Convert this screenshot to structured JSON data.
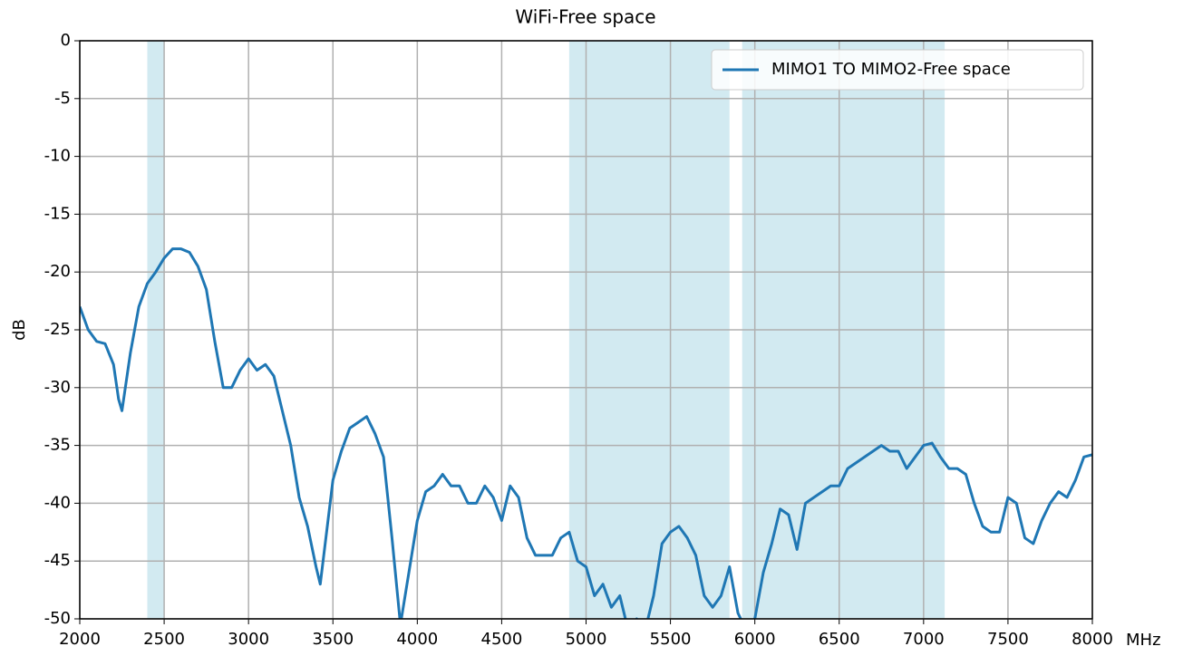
{
  "chart_data": {
    "type": "line",
    "title": "WiFi-Free space",
    "xlabel": "MHz",
    "ylabel": "dB",
    "x": [
      2000,
      2050,
      2100,
      2150,
      2200,
      2230,
      2250,
      2300,
      2350,
      2400,
      2450,
      2500,
      2550,
      2600,
      2650,
      2700,
      2750,
      2800,
      2850,
      2900,
      2950,
      3000,
      3050,
      3100,
      3150,
      3200,
      3250,
      3300,
      3350,
      3400,
      3425,
      3450,
      3500,
      3550,
      3600,
      3650,
      3700,
      3750,
      3800,
      3850,
      3900,
      3950,
      4000,
      4050,
      4100,
      4150,
      4200,
      4250,
      4300,
      4350,
      4400,
      4450,
      4500,
      4550,
      4600,
      4650,
      4700,
      4750,
      4800,
      4850,
      4900,
      4950,
      5000,
      5050,
      5100,
      5150,
      5200,
      5250,
      5300,
      5350,
      5400,
      5450,
      5500,
      5550,
      5600,
      5650,
      5700,
      5750,
      5800,
      5850,
      5900,
      5950,
      6000,
      6050,
      6100,
      6150,
      6200,
      6250,
      6300,
      6350,
      6400,
      6450,
      6500,
      6550,
      6600,
      6650,
      6700,
      6750,
      6800,
      6850,
      6900,
      6950,
      7000,
      7050,
      7100,
      7150,
      7200,
      7250,
      7300,
      7350,
      7400,
      7450,
      7500,
      7550,
      7600,
      7650,
      7700,
      7750,
      7800,
      7850,
      7900,
      7950,
      8000
    ],
    "series": [
      {
        "name": "MIMO1 TO MIMO2-Free space",
        "color": "#1f77b4",
        "values": [
          -23,
          -25,
          -26,
          -26.2,
          -28,
          -31,
          -32,
          -27,
          -23,
          -21,
          -20,
          -18.8,
          -18,
          -18,
          -18.3,
          -19.5,
          -21.5,
          -26,
          -30,
          -30,
          -28.5,
          -27.5,
          -28.5,
          -28,
          -29,
          -32,
          -35,
          -39.5,
          -42,
          -45.5,
          -47,
          -44,
          -38,
          -35.5,
          -33.5,
          -33,
          -32.5,
          -34,
          -36,
          -43,
          -50.5,
          -46,
          -41.5,
          -39,
          -38.5,
          -37.5,
          -38.5,
          -38.5,
          -40,
          -40,
          -38.5,
          -39.5,
          -41.5,
          -38.5,
          -39.5,
          -43,
          -44.5,
          -44.5,
          -44.5,
          -43,
          -42.5,
          -45,
          -45.5,
          -48,
          -47,
          -49,
          -48,
          -51,
          -50,
          -51,
          -48,
          -43.5,
          -42.5,
          -42,
          -43,
          -44.5,
          -48,
          -49,
          -48,
          -45.5,
          -49.5,
          -51,
          -50,
          -46,
          -43.5,
          -40.5,
          -41,
          -44,
          -40,
          -39.5,
          -39,
          -38.5,
          -38.5,
          -37,
          -36.5,
          -36,
          -35.5,
          -35,
          -35.5,
          -35.5,
          -37,
          -36,
          -35,
          -34.8,
          -36,
          -37,
          -37,
          -37.5,
          -40,
          -42,
          -42.5,
          -42.5,
          -39.5,
          -40,
          -43,
          -43.5,
          -41.5,
          -40,
          -39,
          -39.5,
          -38,
          -36,
          -35.8
        ]
      }
    ],
    "bands": [
      [
        2400,
        2500
      ],
      [
        4900,
        5850
      ],
      [
        5925,
        7125
      ]
    ],
    "band_color": "#add8e6",
    "xlim": [
      2000,
      8000
    ],
    "xticks": [
      2000,
      2500,
      3000,
      3500,
      4000,
      4500,
      5000,
      5500,
      6000,
      6500,
      7000,
      7500,
      8000
    ],
    "ylim": [
      -50,
      0
    ],
    "yticks": [
      0,
      -5,
      -10,
      -15,
      -20,
      -25,
      -30,
      -35,
      -40,
      -45,
      -50
    ],
    "grid": true,
    "legend": "upper right"
  }
}
